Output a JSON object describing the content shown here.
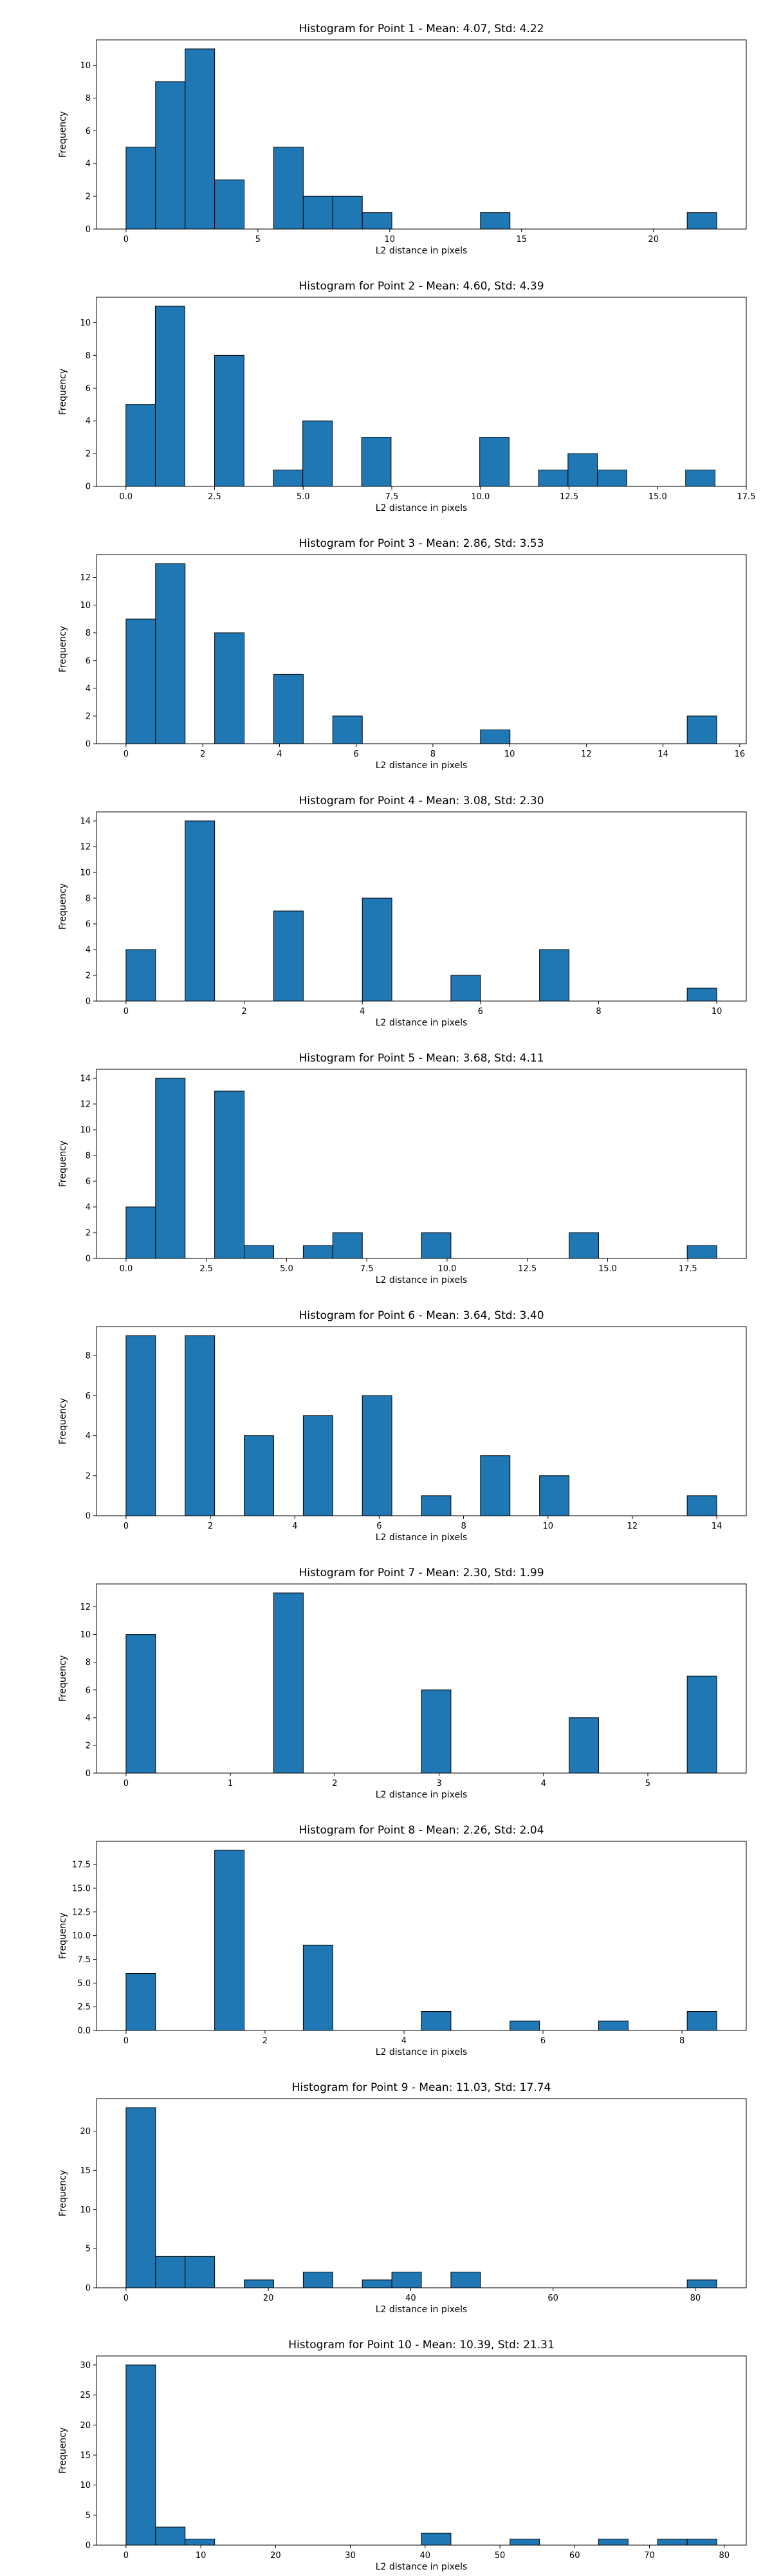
{
  "chart_data": [
    {
      "type": "bar",
      "title": "Histogram for Point 1 - Mean: 4.07, Std: 4.22",
      "xlabel": "L2 distance in pixels",
      "ylabel": "Frequency",
      "xlim": [
        -1.12,
        23.52
      ],
      "ylim": [
        0,
        11.55
      ],
      "xticks": [
        0,
        5,
        10,
        15,
        20
      ],
      "xtick_labels": [
        "0",
        "5",
        "10",
        "15",
        "20"
      ],
      "yticks": [
        0,
        2,
        4,
        6,
        8,
        10
      ],
      "ytick_labels": [
        "0",
        "2",
        "4",
        "6",
        "8",
        "10"
      ],
      "bins": [
        [
          0,
          1.12,
          5
        ],
        [
          1.12,
          2.24,
          9
        ],
        [
          2.24,
          3.36,
          11
        ],
        [
          3.36,
          4.48,
          3
        ],
        [
          5.6,
          6.72,
          5
        ],
        [
          6.72,
          7.84,
          2
        ],
        [
          7.84,
          8.96,
          2
        ],
        [
          8.96,
          10.08,
          1
        ],
        [
          13.44,
          14.56,
          1
        ],
        [
          21.28,
          22.4,
          1
        ]
      ],
      "grid": false,
      "bar_color": "#1f77b4",
      "edge_color": "#000000"
    },
    {
      "type": "bar",
      "title": "Histogram for Point 2 - Mean: 4.60, Std: 4.39",
      "xlabel": "L2 distance in pixels",
      "ylabel": "Frequency",
      "xlim": [
        -0.83,
        17.5
      ],
      "ylim": [
        0,
        11.55
      ],
      "xticks": [
        0,
        2.5,
        5,
        7.5,
        10,
        12.5,
        15,
        17.5
      ],
      "xtick_labels": [
        "0.0",
        "2.5",
        "5.0",
        "7.5",
        "10.0",
        "12.5",
        "15.0",
        "17.5"
      ],
      "yticks": [
        0,
        2,
        4,
        6,
        8,
        10
      ],
      "ytick_labels": [
        "0",
        "2",
        "4",
        "6",
        "8",
        "10"
      ],
      "bins": [
        [
          0,
          0.83,
          5
        ],
        [
          0.83,
          1.66,
          11
        ],
        [
          2.5,
          3.33,
          8
        ],
        [
          4.16,
          4.99,
          1
        ],
        [
          4.99,
          5.82,
          4
        ],
        [
          6.65,
          7.48,
          3
        ],
        [
          9.98,
          10.81,
          3
        ],
        [
          11.64,
          12.47,
          1
        ],
        [
          12.47,
          13.3,
          2
        ],
        [
          13.3,
          14.13,
          1
        ],
        [
          15.79,
          16.62,
          1
        ]
      ],
      "grid": false,
      "bar_color": "#1f77b4",
      "edge_color": "#000000"
    },
    {
      "type": "bar",
      "title": "Histogram for Point 3 - Mean: 2.86, Std: 3.53",
      "xlabel": "L2 distance in pixels",
      "ylabel": "Frequency",
      "xlim": [
        -0.77,
        16.17
      ],
      "ylim": [
        0,
        13.65
      ],
      "xticks": [
        0,
        2,
        4,
        6,
        8,
        10,
        12,
        14,
        16
      ],
      "xtick_labels": [
        "0",
        "2",
        "4",
        "6",
        "8",
        "10",
        "12",
        "14",
        "16"
      ],
      "yticks": [
        0,
        2,
        4,
        6,
        8,
        10,
        12
      ],
      "ytick_labels": [
        "0",
        "2",
        "4",
        "6",
        "8",
        "10",
        "12"
      ],
      "bins": [
        [
          0,
          0.77,
          9
        ],
        [
          0.77,
          1.54,
          13
        ],
        [
          2.31,
          3.08,
          8
        ],
        [
          3.85,
          4.62,
          5
        ],
        [
          5.39,
          6.16,
          2
        ],
        [
          9.24,
          10.01,
          1
        ],
        [
          14.63,
          15.4,
          2
        ]
      ],
      "grid": false,
      "bar_color": "#1f77b4",
      "edge_color": "#000000"
    },
    {
      "type": "bar",
      "title": "Histogram for Point 4 - Mean: 3.08, Std: 2.30",
      "xlabel": "L2 distance in pixels",
      "ylabel": "Frequency",
      "xlim": [
        -0.5,
        10.5
      ],
      "ylim": [
        0,
        14.7
      ],
      "xticks": [
        0,
        2,
        4,
        6,
        8,
        10
      ],
      "xtick_labels": [
        "0",
        "2",
        "4",
        "6",
        "8",
        "10"
      ],
      "yticks": [
        0,
        2,
        4,
        6,
        8,
        10,
        12,
        14
      ],
      "ytick_labels": [
        "0",
        "2",
        "4",
        "6",
        "8",
        "10",
        "12",
        "14"
      ],
      "bins": [
        [
          0,
          0.5,
          4
        ],
        [
          1,
          1.5,
          14
        ],
        [
          2.5,
          3,
          7
        ],
        [
          4,
          4.5,
          8
        ],
        [
          5.5,
          6,
          2
        ],
        [
          7,
          7.5,
          4
        ],
        [
          9.5,
          10,
          1
        ]
      ],
      "grid": false,
      "bar_color": "#1f77b4",
      "edge_color": "#000000"
    },
    {
      "type": "bar",
      "title": "Histogram for Point 5 - Mean: 3.68, Std: 4.11",
      "xlabel": "L2 distance in pixels",
      "ylabel": "Frequency",
      "xlim": [
        -0.92,
        19.32
      ],
      "ylim": [
        0,
        14.7
      ],
      "xticks": [
        0,
        2.5,
        5,
        7.5,
        10,
        12.5,
        15,
        17.5
      ],
      "xtick_labels": [
        "0.0",
        "2.5",
        "5.0",
        "7.5",
        "10.0",
        "12.5",
        "15.0",
        "17.5"
      ],
      "yticks": [
        0,
        2,
        4,
        6,
        8,
        10,
        12,
        14
      ],
      "ytick_labels": [
        "0",
        "2",
        "4",
        "6",
        "8",
        "10",
        "12",
        "14"
      ],
      "bins": [
        [
          0,
          0.92,
          4
        ],
        [
          0.92,
          1.84,
          14
        ],
        [
          2.76,
          3.68,
          13
        ],
        [
          3.68,
          4.6,
          1
        ],
        [
          5.52,
          6.44,
          1
        ],
        [
          6.44,
          7.36,
          2
        ],
        [
          9.2,
          10.12,
          2
        ],
        [
          13.8,
          14.72,
          2
        ],
        [
          17.48,
          18.4,
          1
        ]
      ],
      "grid": false,
      "bar_color": "#1f77b4",
      "edge_color": "#000000"
    },
    {
      "type": "bar",
      "title": "Histogram for Point 6 - Mean: 3.64, Std: 3.40",
      "xlabel": "L2 distance in pixels",
      "ylabel": "Frequency",
      "xlim": [
        -0.7,
        14.7
      ],
      "ylim": [
        0,
        9.45
      ],
      "xticks": [
        0,
        2,
        4,
        6,
        8,
        10,
        12,
        14
      ],
      "xtick_labels": [
        "0",
        "2",
        "4",
        "6",
        "8",
        "10",
        "12",
        "14"
      ],
      "yticks": [
        0,
        2,
        4,
        6,
        8
      ],
      "ytick_labels": [
        "0",
        "2",
        "4",
        "6",
        "8"
      ],
      "bins": [
        [
          0,
          0.7,
          9
        ],
        [
          1.4,
          2.1,
          9
        ],
        [
          2.8,
          3.5,
          4
        ],
        [
          4.2,
          4.9,
          5
        ],
        [
          5.6,
          6.3,
          6
        ],
        [
          7,
          7.7,
          1
        ],
        [
          8.4,
          9.1,
          3
        ],
        [
          9.8,
          10.5,
          2
        ],
        [
          13.3,
          14,
          1
        ]
      ],
      "grid": false,
      "bar_color": "#1f77b4",
      "edge_color": "#000000"
    },
    {
      "type": "bar",
      "title": "Histogram for Point 7 - Mean: 2.30, Std: 1.99",
      "xlabel": "L2 distance in pixels",
      "ylabel": "Frequency",
      "xlim": [
        -0.283,
        5.943
      ],
      "ylim": [
        0,
        13.65
      ],
      "xticks": [
        0,
        1,
        2,
        3,
        4,
        5
      ],
      "xtick_labels": [
        "0",
        "1",
        "2",
        "3",
        "4",
        "5"
      ],
      "yticks": [
        0,
        2,
        4,
        6,
        8,
        10,
        12
      ],
      "ytick_labels": [
        "0",
        "2",
        "4",
        "6",
        "8",
        "10",
        "12"
      ],
      "bins": [
        [
          0,
          0.283,
          10
        ],
        [
          1.415,
          1.698,
          13
        ],
        [
          2.83,
          3.113,
          6
        ],
        [
          4.245,
          4.528,
          4
        ],
        [
          5.377,
          5.66,
          7
        ]
      ],
      "grid": false,
      "bar_color": "#1f77b4",
      "edge_color": "#000000"
    },
    {
      "type": "bar",
      "title": "Histogram for Point 8 - Mean: 2.26, Std: 2.04",
      "xlabel": "L2 distance in pixels",
      "ylabel": "Frequency",
      "xlim": [
        -0.425,
        8.925
      ],
      "ylim": [
        0,
        19.95
      ],
      "xticks": [
        0,
        2,
        4,
        6,
        8
      ],
      "xtick_labels": [
        "0",
        "2",
        "4",
        "6",
        "8"
      ],
      "yticks": [
        0,
        2.5,
        5,
        7.5,
        10,
        12.5,
        15,
        17.5
      ],
      "ytick_labels": [
        "0.0",
        "2.5",
        "5.0",
        "7.5",
        "10.0",
        "12.5",
        "15.0",
        "17.5"
      ],
      "bins": [
        [
          0,
          0.425,
          6
        ],
        [
          1.275,
          1.7,
          19
        ],
        [
          2.55,
          2.975,
          9
        ],
        [
          4.25,
          4.675,
          2
        ],
        [
          5.525,
          5.95,
          1
        ],
        [
          6.8,
          7.225,
          1
        ],
        [
          8.075,
          8.5,
          2
        ]
      ],
      "grid": false,
      "bar_color": "#1f77b4",
      "edge_color": "#000000"
    },
    {
      "type": "bar",
      "title": "Histogram for Point 9 - Mean: 11.03, Std: 17.74",
      "xlabel": "L2 distance in pixels",
      "ylabel": "Frequency",
      "xlim": [
        -4.15,
        87.15
      ],
      "ylim": [
        0,
        24.15
      ],
      "xticks": [
        0,
        20,
        40,
        60,
        80
      ],
      "xtick_labels": [
        "0",
        "20",
        "40",
        "60",
        "80"
      ],
      "yticks": [
        0,
        5,
        10,
        15,
        20
      ],
      "ytick_labels": [
        "0",
        "5",
        "10",
        "15",
        "20"
      ],
      "bins": [
        [
          0,
          4.15,
          23
        ],
        [
          4.15,
          8.3,
          4
        ],
        [
          8.3,
          12.45,
          4
        ],
        [
          16.6,
          20.75,
          1
        ],
        [
          24.9,
          29.05,
          2
        ],
        [
          33.2,
          37.35,
          1
        ],
        [
          37.35,
          41.5,
          2
        ],
        [
          45.65,
          49.8,
          2
        ],
        [
          78.85,
          83,
          1
        ]
      ],
      "grid": false,
      "bar_color": "#1f77b4",
      "edge_color": "#000000"
    },
    {
      "type": "bar",
      "title": "Histogram for Point 10 - Mean: 10.39, Std: 21.31",
      "xlabel": "L2 distance in pixels",
      "ylabel": "Frequency",
      "xlim": [
        -3.95,
        82.95
      ],
      "ylim": [
        0,
        31.5
      ],
      "xticks": [
        0,
        10,
        20,
        30,
        40,
        50,
        60,
        70,
        80
      ],
      "xtick_labels": [
        "0",
        "10",
        "20",
        "30",
        "40",
        "50",
        "60",
        "70",
        "80"
      ],
      "yticks": [
        0,
        5,
        10,
        15,
        20,
        25,
        30
      ],
      "ytick_labels": [
        "0",
        "5",
        "10",
        "15",
        "20",
        "25",
        "30"
      ],
      "bins": [
        [
          0,
          3.95,
          30
        ],
        [
          3.95,
          7.9,
          3
        ],
        [
          7.9,
          11.85,
          1
        ],
        [
          39.5,
          43.45,
          2
        ],
        [
          51.35,
          55.3,
          1
        ],
        [
          63.2,
          67.15,
          1
        ],
        [
          71.1,
          75.05,
          1
        ],
        [
          75.05,
          79,
          1
        ]
      ],
      "grid": false,
      "bar_color": "#1f77b4",
      "edge_color": "#000000"
    }
  ]
}
